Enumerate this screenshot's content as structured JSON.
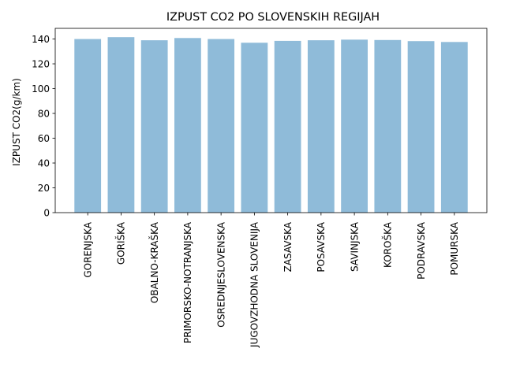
{
  "chart_data": {
    "type": "bar",
    "title": "IZPUST CO2 PO SLOVENSKIH REGIJAH",
    "xlabel": "",
    "ylabel": "IZPUST CO2(g/km)",
    "categories": [
      "GORENJSKA",
      "GORIŠKA",
      "OBALNO-KRAŠKA",
      "PRIMORSKO-NOTRANJSKA",
      "OSREDNJESLOVENSKA",
      "JUGOVZHODNA SLOVENIJA",
      "ZASAVSKA",
      "POSAVSKA",
      "SAVINJSKA",
      "KOROŠKA",
      "PODRAVSKA",
      "POMURSKA"
    ],
    "values": [
      140.0,
      141.5,
      139.0,
      140.8,
      140.0,
      137.0,
      138.5,
      139.0,
      139.5,
      139.2,
      138.3,
      137.6
    ],
    "ylim": [
      0,
      148.6
    ],
    "yticks": [
      0,
      20,
      40,
      60,
      80,
      100,
      120,
      140
    ],
    "bar_color": "#1f77b4",
    "bar_alpha": 0.5,
    "grid": false,
    "legend": "none"
  }
}
